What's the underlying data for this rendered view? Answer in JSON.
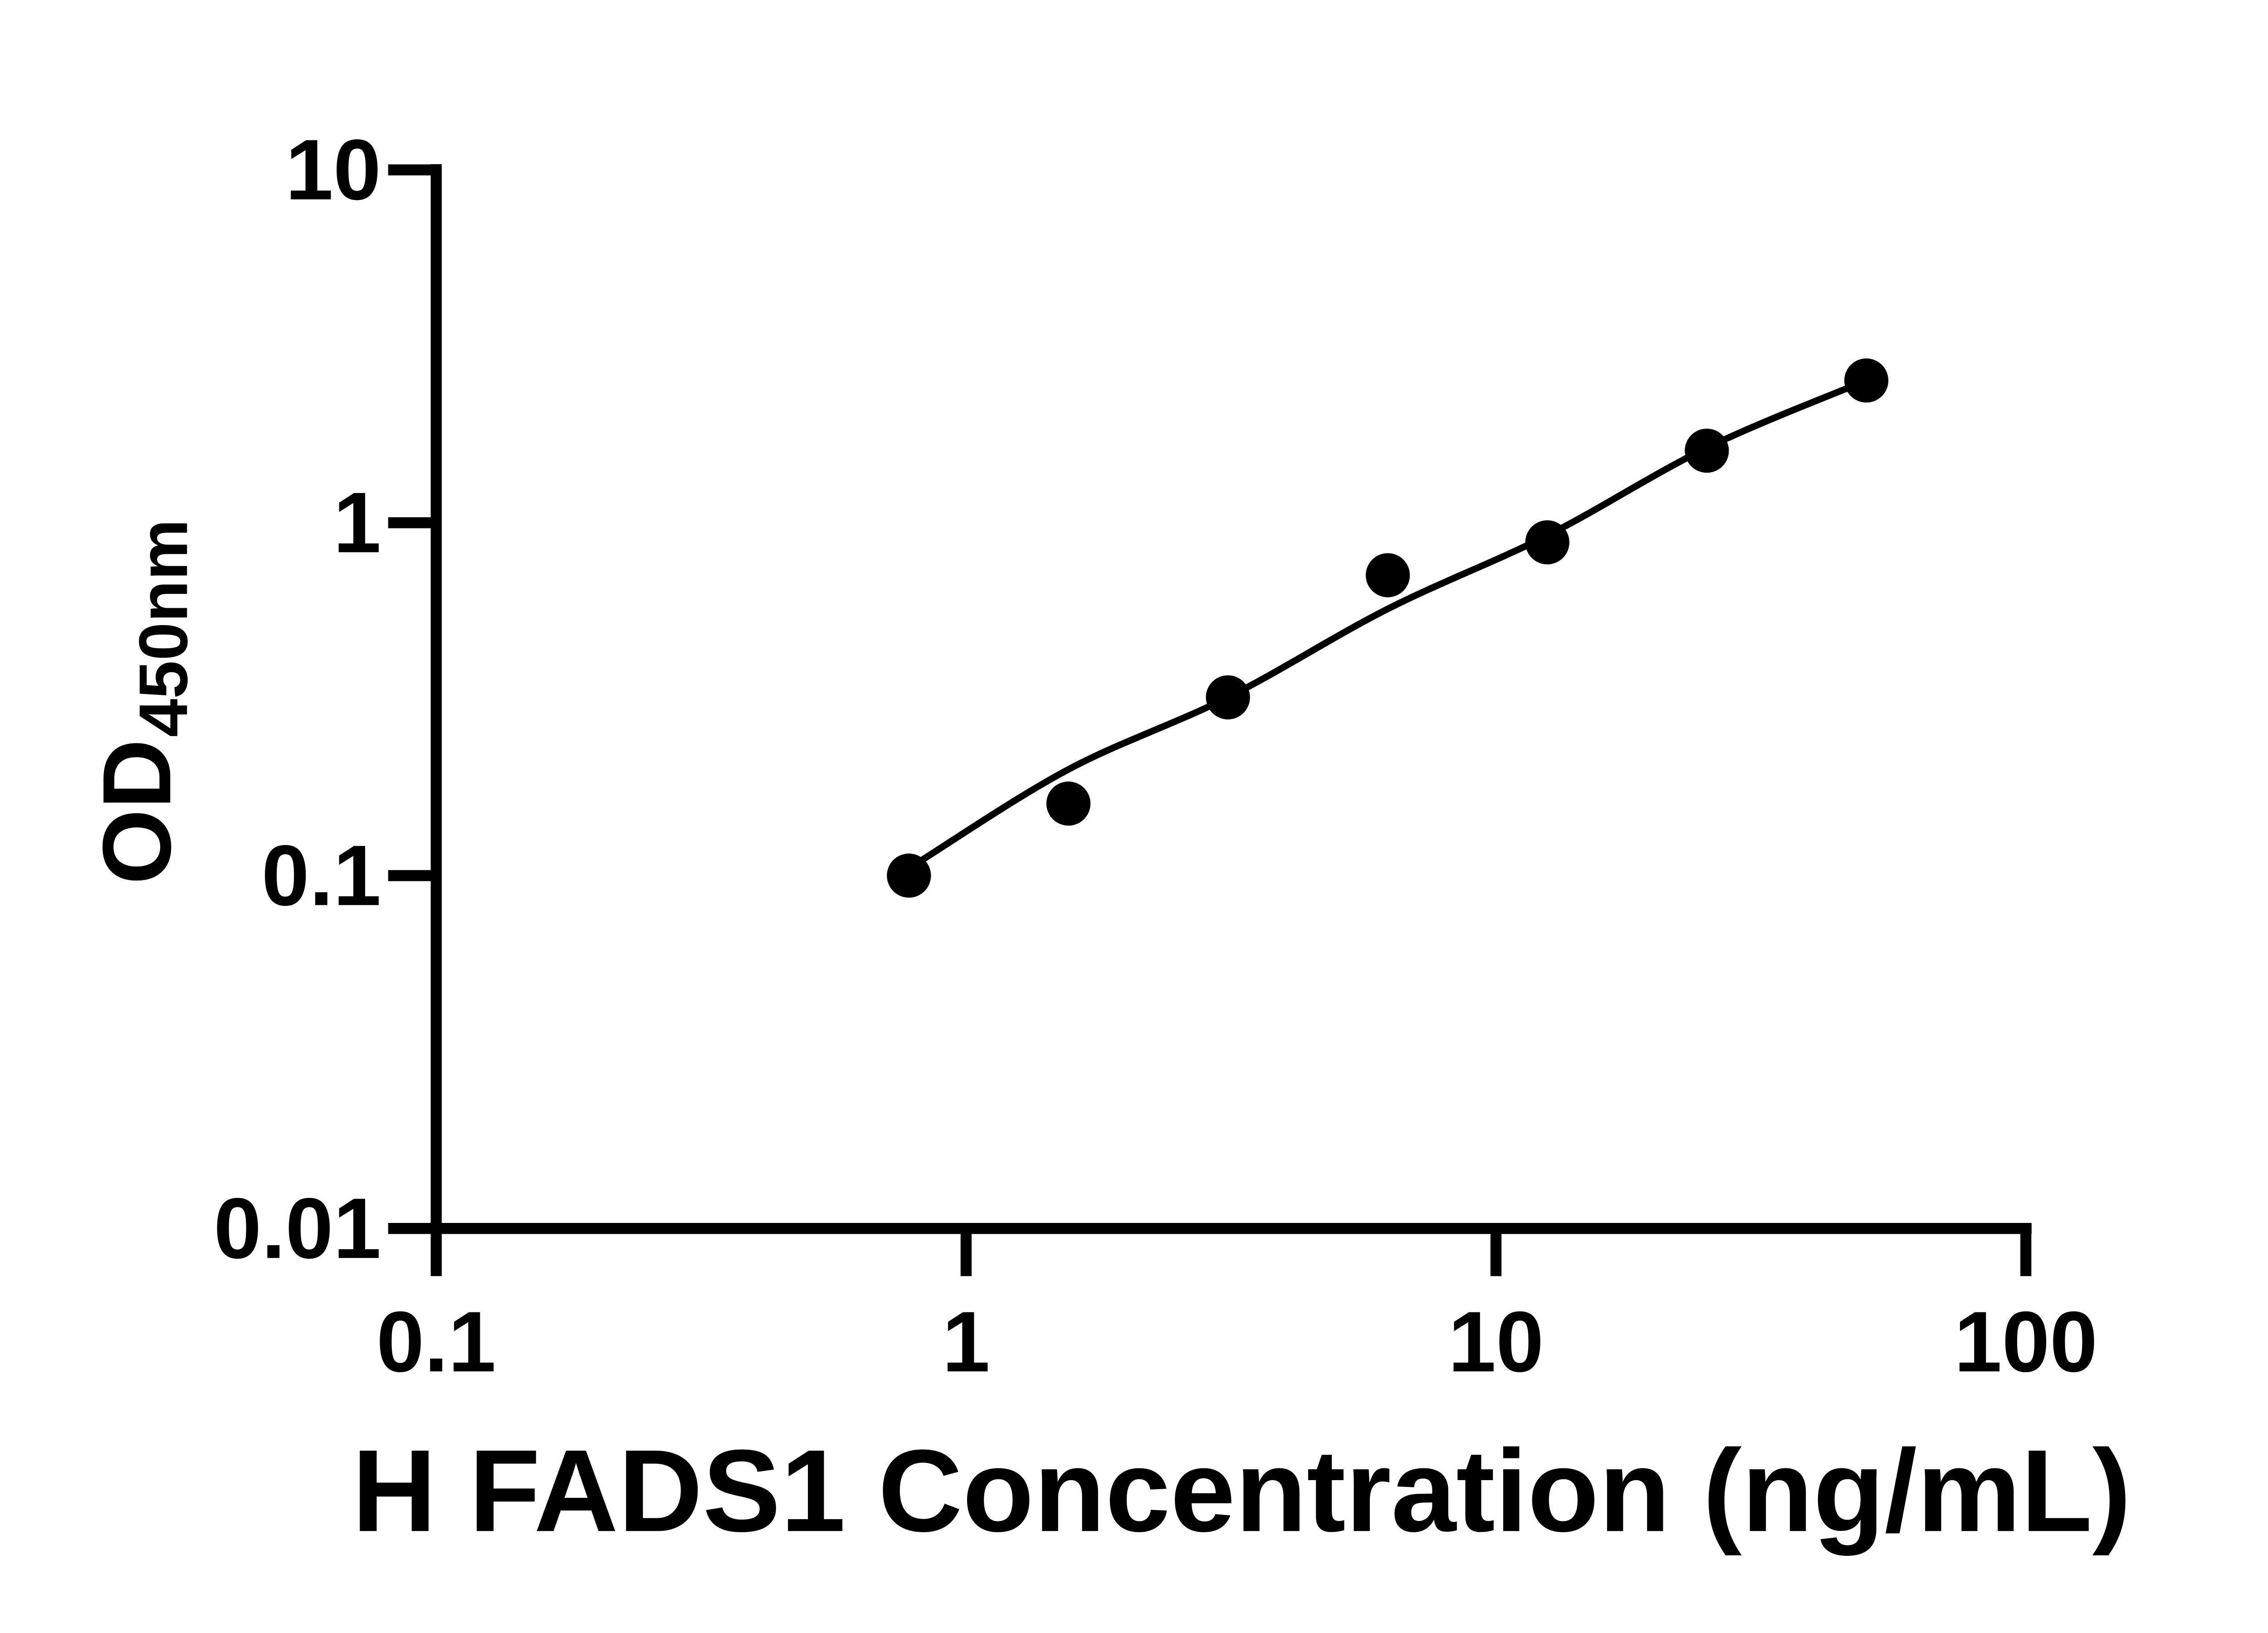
{
  "chart_data": {
    "type": "scatter",
    "title": "",
    "xlabel": "H FADS1 Concentration (ng/mL)",
    "ylabel_main": "OD",
    "ylabel_sub": "450nm",
    "x_scale": "log",
    "y_scale": "log",
    "xlim": [
      0.1,
      100
    ],
    "ylim": [
      0.01,
      10
    ],
    "x_ticks": [
      "0.1",
      "1",
      "10",
      "100"
    ],
    "y_ticks": [
      "0.01",
      "0.1",
      "1",
      "10"
    ],
    "grid": false,
    "legend": "none",
    "marker_color": "#000000",
    "line_color": "#000000",
    "axis_color": "#000000",
    "background_color": "#ffffff",
    "points": [
      {
        "x": 0.78,
        "od": 0.1
      },
      {
        "x": 1.56,
        "od": 0.16
      },
      {
        "x": 3.12,
        "od": 0.32
      },
      {
        "x": 6.25,
        "od": 0.71
      },
      {
        "x": 12.5,
        "od": 0.88
      },
      {
        "x": 25,
        "od": 1.6
      },
      {
        "x": 50,
        "od": 2.53
      }
    ],
    "fit_curve_points": [
      {
        "x": 0.82,
        "od": 0.11
      },
      {
        "x": 1.56,
        "od": 0.2
      },
      {
        "x": 3.12,
        "od": 0.32
      },
      {
        "x": 6.25,
        "od": 0.57
      },
      {
        "x": 12.5,
        "od": 0.92
      },
      {
        "x": 25,
        "od": 1.63
      },
      {
        "x": 50,
        "od": 2.53
      }
    ]
  }
}
